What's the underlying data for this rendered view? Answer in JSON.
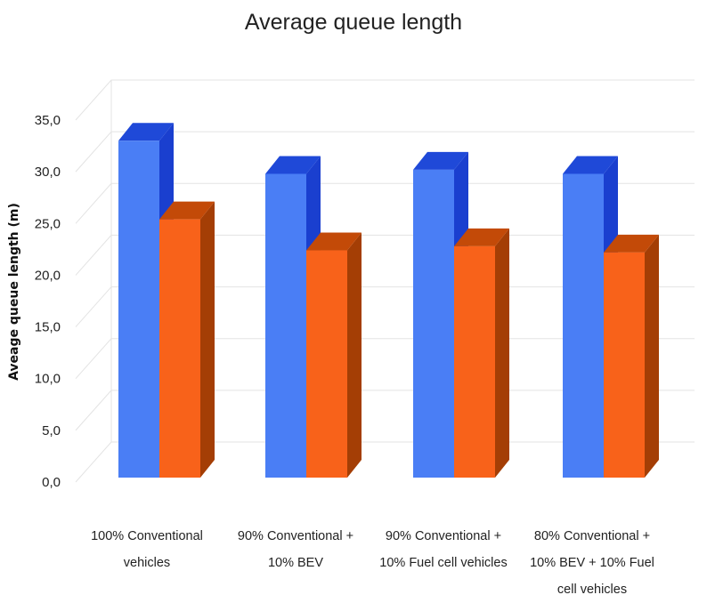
{
  "chart_data": {
    "type": "bar",
    "title": "Average queue length",
    "xlabel": "",
    "ylabel": "Aveage queue length (m)",
    "ylim": [
      0,
      35
    ],
    "y_ticks": [
      "0,0",
      "5,0",
      "10,0",
      "15,0",
      "20,0",
      "25,0",
      "30,0",
      "35,0"
    ],
    "y_tick_values": [
      0,
      5,
      10,
      15,
      20,
      25,
      30,
      35
    ],
    "categories": [
      [
        "100% Conventional",
        "vehicles"
      ],
      [
        "90% Conventional +",
        "10% BEV"
      ],
      [
        "90% Conventional +",
        "10% Fuel cell vehicles"
      ],
      [
        "80% Conventional +",
        "10% BEV + 10% Fuel",
        "cell vehicles"
      ]
    ],
    "series": [
      {
        "values": [
          33.0,
          29.8,
          30.2,
          29.8
        ]
      },
      {
        "values": [
          25.4,
          22.4,
          22.8,
          22.2
        ]
      }
    ],
    "grid": true,
    "legend": "none"
  },
  "colors": {
    "series1_front": "#4a7ef5",
    "series1_side": "#1a3fcf",
    "series1_top": "#1f49d8",
    "series2_front": "#f8621a",
    "series2_side": "#a43e05",
    "series2_top": "#c34a08"
  }
}
